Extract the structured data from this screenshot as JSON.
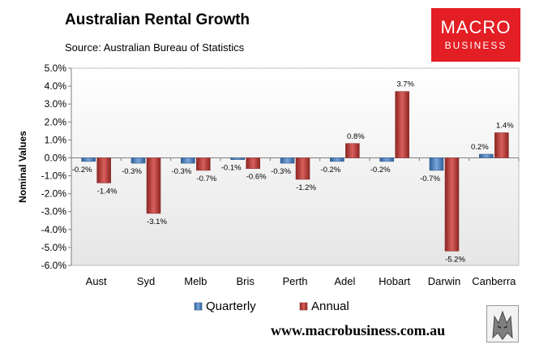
{
  "chart_data": {
    "type": "bar",
    "title": "Australian Rental Growth",
    "subtitle": "Source: Australian Bureau of Statistics",
    "ylabel": "Nominal Values",
    "xlabel": "",
    "ylim": [
      -6.0,
      5.0
    ],
    "ytick_step": 1.0,
    "ytick_labels": [
      "5.0%",
      "4.0%",
      "3.0%",
      "2.0%",
      "1.0%",
      "0.0%",
      "-1.0%",
      "-2.0%",
      "-3.0%",
      "-4.0%",
      "-5.0%",
      "-6.0%"
    ],
    "grid": false,
    "categories": [
      "Aust",
      "Syd",
      "Melb",
      "Bris",
      "Perth",
      "Adel",
      "Hobart",
      "Darwin",
      "Canberra"
    ],
    "series": [
      {
        "name": "Quarterly",
        "color": "#4f81bd",
        "values": [
          -0.2,
          -0.3,
          -0.3,
          -0.1,
          -0.3,
          -0.2,
          -0.2,
          -0.7,
          0.2
        ],
        "labels": [
          "-0.2%",
          "-0.3%",
          "-0.3%",
          "-0.1%",
          "-0.3%",
          "-0.2%",
          "-0.2%",
          "-0.7%",
          "0.2%"
        ]
      },
      {
        "name": "Annual",
        "color": "#c0504d",
        "values": [
          -1.4,
          -3.1,
          -0.7,
          -0.6,
          -1.2,
          0.8,
          3.7,
          -5.2,
          1.4
        ],
        "labels": [
          "-1.4%",
          "-3.1%",
          "-0.7%",
          "-0.6%",
          "-1.2%",
          "0.8%",
          "3.7%",
          "-5.2%",
          "1.4%"
        ]
      }
    ],
    "legend_position": "bottom"
  },
  "logo": {
    "line1": "MACRO",
    "line2": "BUSINESS"
  },
  "website": "www.macrobusiness.com.au",
  "icons": {
    "wolf": "wolf-logo-icon"
  }
}
